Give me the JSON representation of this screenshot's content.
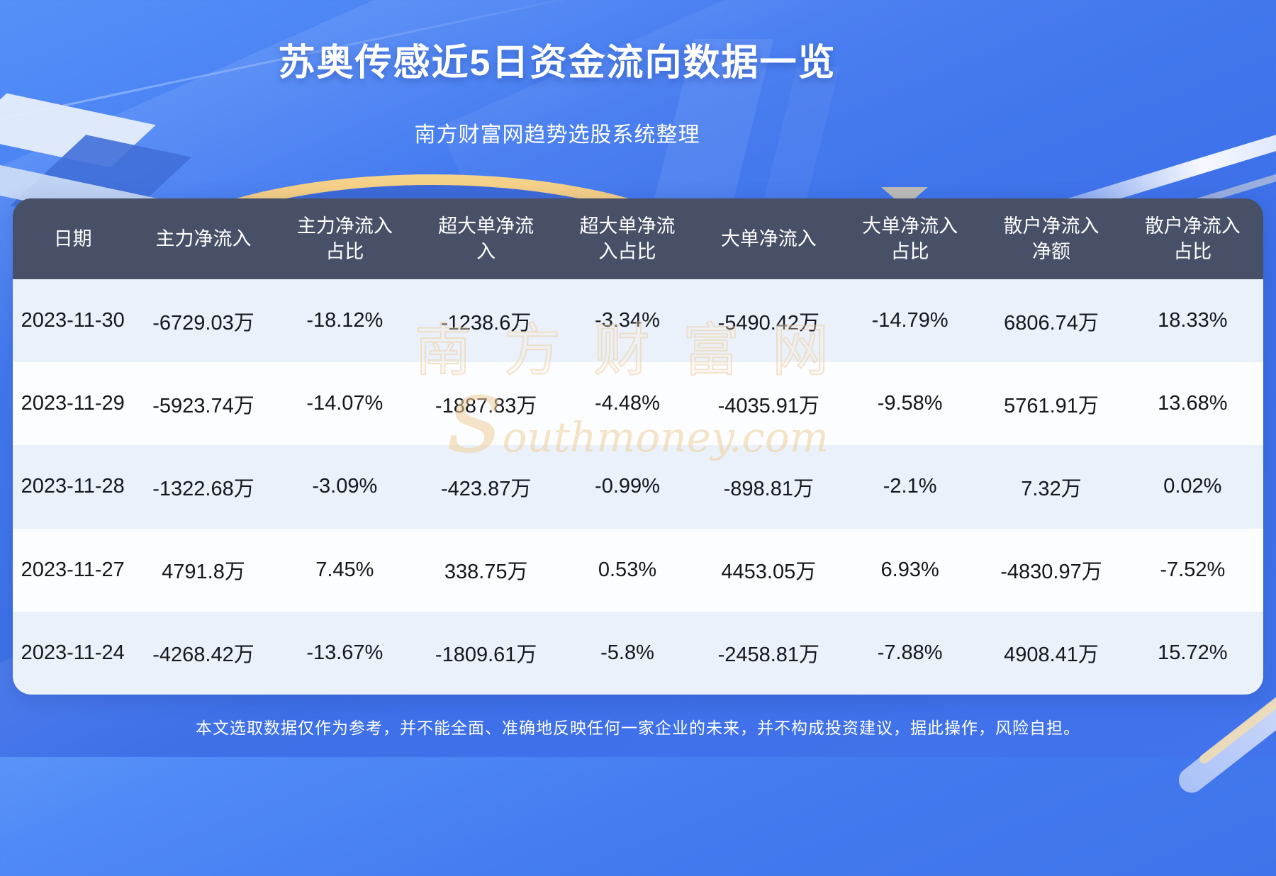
{
  "header": {
    "title": "苏奥传感近5日资金流向数据一览",
    "subtitle": "南方财富网趋势选股系统整理"
  },
  "table": {
    "columns_display": [
      "日期",
      "主力净流入",
      "主力净流入\n占比",
      "超大单净流\n入",
      "超大单净流\n入占比",
      "大单净流入",
      "大单净流入\n占比",
      "散户净流入\n净额",
      "散户净流入\n占比"
    ]
  },
  "chart_data": {
    "type": "table",
    "title": "苏奥传感近5日资金流向数据一览",
    "columns": [
      "日期",
      "主力净流入",
      "主力净流入占比",
      "超大单净流入",
      "超大单净流入占比",
      "大单净流入",
      "大单净流入占比",
      "散户净流入净额",
      "散户净流入占比"
    ],
    "rows": [
      [
        "2023-11-30",
        "-6729.03万",
        "-18.12%",
        "-1238.6万",
        "-3.34%",
        "-5490.42万",
        "-14.79%",
        "6806.74万",
        "18.33%"
      ],
      [
        "2023-11-29",
        "-5923.74万",
        "-14.07%",
        "-1887.83万",
        "-4.48%",
        "-4035.91万",
        "-9.58%",
        "5761.91万",
        "13.68%"
      ],
      [
        "2023-11-28",
        "-1322.68万",
        "-3.09%",
        "-423.87万",
        "-0.99%",
        "-898.81万",
        "-2.1%",
        "7.32万",
        "0.02%"
      ],
      [
        "2023-11-27",
        "4791.8万",
        "7.45%",
        "338.75万",
        "0.53%",
        "4453.05万",
        "6.93%",
        "-4830.97万",
        "-7.52%"
      ],
      [
        "2023-11-24",
        "-4268.42万",
        "-13.67%",
        "-1809.61万",
        "-5.8%",
        "-2458.81万",
        "-7.88%",
        "4908.41万",
        "15.72%"
      ]
    ]
  },
  "watermark": {
    "brand": "南方财富网",
    "domain": "southmoney.com"
  },
  "footer": {
    "disclaimer": "本文选取数据仅作为参考，并不能全面、准确地反映任何一家企业的未来，并不构成投资建议，据此操作，风险自担。"
  },
  "colors": {
    "background_blue": "#4176ee",
    "header_bg": "#475066",
    "row_light_blue": "#eaf1fa",
    "row_white": "#fbfdff",
    "accent_gold": "#eab35f",
    "text_dark": "#15171c",
    "text_white": "#ffffff"
  }
}
